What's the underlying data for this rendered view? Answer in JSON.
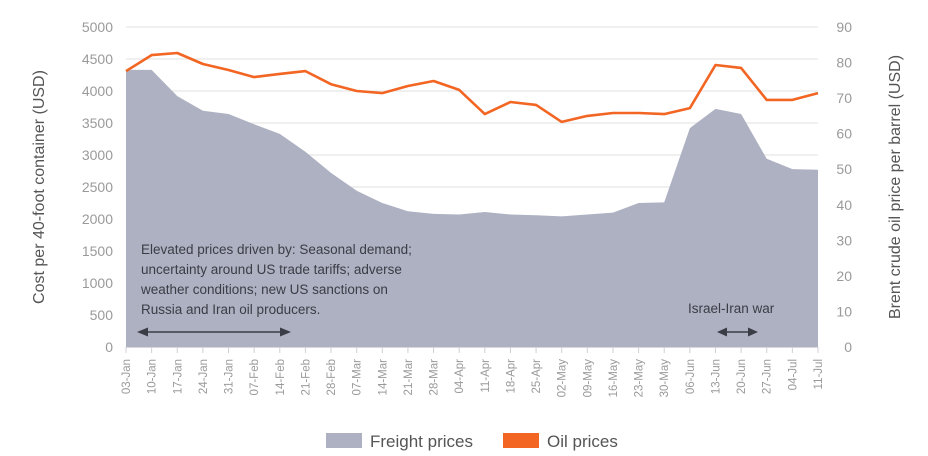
{
  "chart_data": {
    "type": "area+line",
    "title": "",
    "categories": [
      "03-Jan",
      "10-Jan",
      "17-Jan",
      "24-Jan",
      "31-Jan",
      "07-Feb",
      "14-Feb",
      "21-Feb",
      "28-Feb",
      "07-Mar",
      "14-Mar",
      "21-Mar",
      "28-Mar",
      "04-Apr",
      "11-Apr",
      "18-Apr",
      "25-Apr",
      "02-May",
      "09-May",
      "16-May",
      "23-May",
      "30-May",
      "06-Jun",
      "13-Jun",
      "20-Jun",
      "27-Jun",
      "04-Jul",
      "11-Jul"
    ],
    "series": [
      {
        "name": "Freight prices",
        "type": "area",
        "axis": "left",
        "color": "#adb1c2",
        "values": [
          4330,
          4330,
          3920,
          3690,
          3640,
          3480,
          3330,
          3050,
          2720,
          2440,
          2250,
          2120,
          2080,
          2070,
          2110,
          2070,
          2060,
          2040,
          2070,
          2100,
          2250,
          2260,
          3420,
          3720,
          3640,
          2940,
          2780,
          2770
        ]
      },
      {
        "name": "Oil prices",
        "type": "line",
        "axis": "right",
        "color": "#f26522",
        "values": [
          77.6,
          82.1,
          82.7,
          79.6,
          77.9,
          75.9,
          76.8,
          77.6,
          73.9,
          72.0,
          71.4,
          73.4,
          74.8,
          72.3,
          65.5,
          68.9,
          68.1,
          63.3,
          65.0,
          65.8,
          65.8,
          65.5,
          67.2,
          79.3,
          78.5,
          69.5,
          69.5,
          71.4
        ]
      }
    ],
    "ylabel": "Cost per 40-foot container (USD)",
    "ylim": [
      0,
      5000
    ],
    "yticks": [
      "0",
      "500",
      "1000",
      "1500",
      "2000",
      "2500",
      "3000",
      "3500",
      "4000",
      "4500",
      "5000"
    ],
    "y2label": "Brent crude oil price per barrel (USD)",
    "y2lim": [
      0,
      90
    ],
    "y2ticks": [
      "0",
      "10",
      "20",
      "30",
      "40",
      "50",
      "60",
      "70",
      "80",
      "90"
    ],
    "xlabel": "",
    "grid": true,
    "legend_position": "bottom",
    "annotations": [
      {
        "lines": [
          "Elevated prices driven by: Seasonal demand;",
          "uncertainty around US trade tariffs; adverse",
          "weather conditions; new US sanctions on",
          "Russia and Iran oil producers."
        ],
        "range": [
          "03-Jan",
          "21-Feb"
        ]
      },
      {
        "lines": [
          "Israel-Iran war"
        ],
        "range": [
          "13-Jun",
          "27-Jun"
        ]
      }
    ]
  },
  "legend": {
    "freight_label": "Freight prices",
    "oil_label": "Oil prices"
  }
}
